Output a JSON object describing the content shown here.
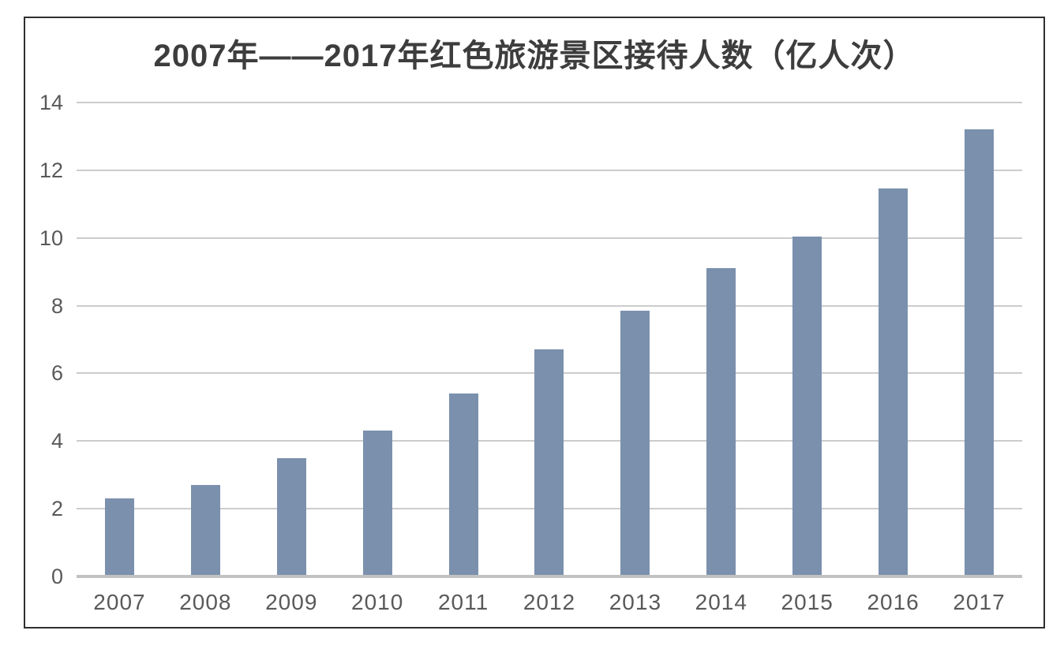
{
  "chart_data": {
    "type": "bar",
    "title": "2007年——2017年红色旅游景区接待人数（亿人次）",
    "xlabel": "",
    "ylabel": "",
    "categories": [
      "2007",
      "2008",
      "2009",
      "2010",
      "2011",
      "2012",
      "2013",
      "2014",
      "2015",
      "2016",
      "2017"
    ],
    "values": [
      2.3,
      2.7,
      3.5,
      4.3,
      5.4,
      6.7,
      7.85,
      9.1,
      10.05,
      11.45,
      13.2
    ],
    "ylim": [
      0,
      14
    ],
    "yticks": [
      0,
      2,
      4,
      6,
      8,
      10,
      12,
      14
    ],
    "grid": true,
    "legend": "none",
    "colors": {
      "bar": "#7b90ad",
      "gridline": "#cccccc",
      "axis_line": "#c2c2c2",
      "tick_text": "#595959",
      "title_text": "#3d3d3d",
      "frame_border": "#2f2f2f",
      "background": "#ffffff"
    }
  }
}
